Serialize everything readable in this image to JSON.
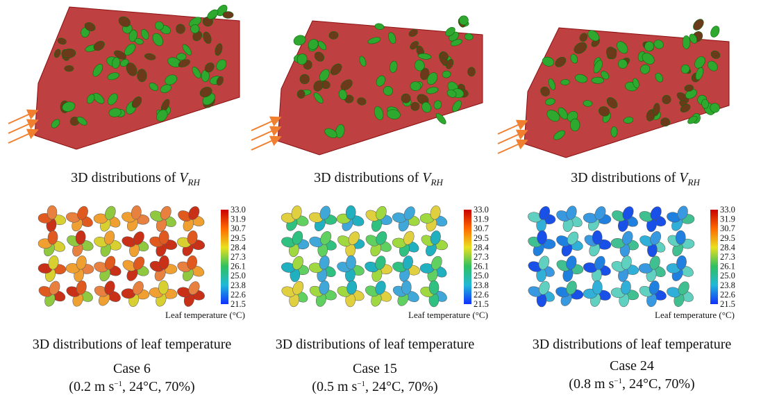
{
  "colorbar": {
    "ticks": [
      "33.0",
      "31.9",
      "30.7",
      "29.5",
      "28.4",
      "27.3",
      "26.1",
      "25.0",
      "23.8",
      "22.6",
      "21.5"
    ],
    "label": "Leaf temperature (°C)"
  },
  "panels": [
    {
      "top_caption": {
        "text": "3D distributions of ",
        "var": "V",
        "sub": "RH"
      },
      "bottom_caption": "3D distributions of leaf temperature",
      "case": "Case 6",
      "conditions": {
        "start": "(0.2 m s",
        "sup": "−1",
        "end": ", 24°C, 70%)"
      }
    },
    {
      "top_caption": {
        "text": "3D distributions of ",
        "var": "V",
        "sub": "RH"
      },
      "bottom_caption": "3D distributions of leaf temperature",
      "case": "Case 15",
      "conditions": {
        "start": "(0.5 m s",
        "sup": "−1",
        "end": ", 24°C, 70%)"
      }
    },
    {
      "top_caption": {
        "text": "3D distributions of ",
        "var": "V",
        "sub": "RH"
      },
      "bottom_caption": "3D distributions of leaf temperature",
      "case": "Case 24",
      "conditions": {
        "start": "(0.8 m s",
        "sup": "−1",
        "end": ", 24°C, 70%)"
      }
    }
  ]
}
